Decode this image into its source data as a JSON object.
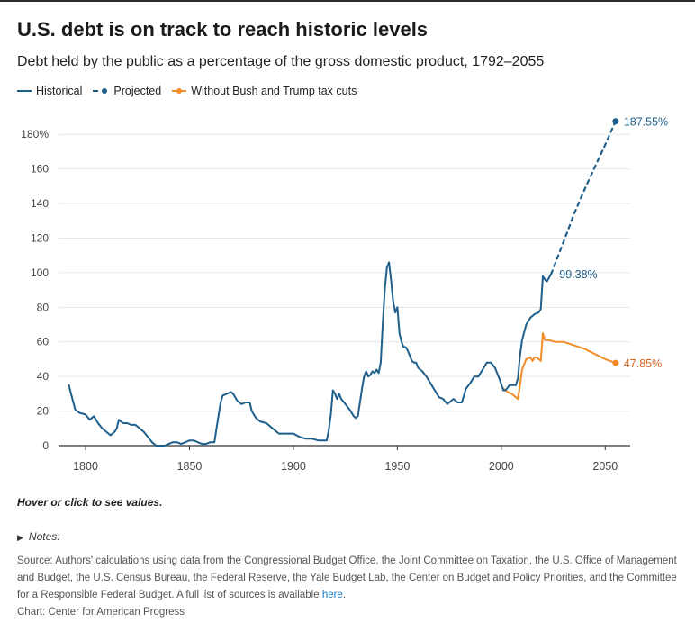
{
  "title": "U.S. debt is on track to reach historic levels",
  "subtitle": "Debt held by the public as a percentage of the gross domestic product, 1792–2055",
  "legend": {
    "historical": "Historical",
    "projected": "Projected",
    "without_tax_cuts": "Without Bush and Trump tax cuts"
  },
  "colors": {
    "historical": "#1f5f8b",
    "projected": "#1f5f8b",
    "without_tax_cuts": "#f28c28",
    "without_label": "#d9661f",
    "axis": "#333333",
    "grid": "#e6e6e6"
  },
  "hover_hint": "Hover or click to see values.",
  "notes_label": "Notes:",
  "source_text": "Source: Authors' calculations using data from the Congressional Budget Office, the Joint Committee on Taxation, the U.S. Office of Management and Budget, the U.S. Census Bureau, the Federal Reserve, the Yale Budget Lab, the Center on Budget and Policy Priorities, and the Committee for a Responsible Federal Budget. A full list of sources is available",
  "source_link": "here",
  "source_end": ".",
  "credit": "Chart: Center for American Progress",
  "chart_data": {
    "type": "line",
    "title": "U.S. debt is on track to reach historic levels",
    "subtitle": "Debt held by the public as a percentage of the gross domestic product, 1792–2055",
    "xlabel": "",
    "ylabel": "",
    "xlim": [
      1787,
      2062
    ],
    "ylim": [
      0,
      190
    ],
    "x_ticks": [
      1800,
      1850,
      1900,
      1950,
      2000,
      2050
    ],
    "y_ticks": [
      0,
      20,
      40,
      60,
      80,
      100,
      120,
      140,
      160,
      180
    ],
    "y_tick_labels": [
      "0",
      "20",
      "40",
      "60",
      "80",
      "100",
      "120",
      "140",
      "160",
      "180%"
    ],
    "grid": "horizontal",
    "legend_position": "top-left",
    "series": [
      {
        "name": "Historical",
        "style": "solid",
        "points": [
          [
            1792,
            35
          ],
          [
            1793,
            30
          ],
          [
            1795,
            21
          ],
          [
            1797,
            19
          ],
          [
            1800,
            18
          ],
          [
            1802,
            15
          ],
          [
            1804,
            17
          ],
          [
            1806,
            13
          ],
          [
            1808,
            10
          ],
          [
            1810,
            8
          ],
          [
            1812,
            6
          ],
          [
            1814,
            8
          ],
          [
            1815,
            10
          ],
          [
            1816,
            15
          ],
          [
            1818,
            13
          ],
          [
            1820,
            13
          ],
          [
            1822,
            12
          ],
          [
            1824,
            12
          ],
          [
            1826,
            10
          ],
          [
            1828,
            8
          ],
          [
            1830,
            5
          ],
          [
            1832,
            2
          ],
          [
            1834,
            0
          ],
          [
            1836,
            0
          ],
          [
            1838,
            0
          ],
          [
            1840,
            1
          ],
          [
            1842,
            2
          ],
          [
            1844,
            2
          ],
          [
            1846,
            1
          ],
          [
            1848,
            2
          ],
          [
            1850,
            3
          ],
          [
            1852,
            3
          ],
          [
            1854,
            2
          ],
          [
            1856,
            1
          ],
          [
            1858,
            1
          ],
          [
            1860,
            2
          ],
          [
            1862,
            2
          ],
          [
            1863,
            10
          ],
          [
            1865,
            25
          ],
          [
            1866,
            29
          ],
          [
            1868,
            30
          ],
          [
            1870,
            31
          ],
          [
            1871,
            30
          ],
          [
            1873,
            26
          ],
          [
            1875,
            24
          ],
          [
            1877,
            25
          ],
          [
            1879,
            25
          ],
          [
            1880,
            20
          ],
          [
            1882,
            16
          ],
          [
            1884,
            14
          ],
          [
            1887,
            13
          ],
          [
            1890,
            10
          ],
          [
            1893,
            7
          ],
          [
            1896,
            7
          ],
          [
            1898,
            7
          ],
          [
            1900,
            7
          ],
          [
            1903,
            5
          ],
          [
            1906,
            4
          ],
          [
            1909,
            4
          ],
          [
            1912,
            3
          ],
          [
            1915,
            3
          ],
          [
            1916,
            3
          ],
          [
            1917,
            9
          ],
          [
            1918,
            18
          ],
          [
            1919,
            32
          ],
          [
            1920,
            30
          ],
          [
            1921,
            27
          ],
          [
            1922,
            30
          ],
          [
            1923,
            27
          ],
          [
            1925,
            24
          ],
          [
            1927,
            21
          ],
          [
            1929,
            17
          ],
          [
            1930,
            16
          ],
          [
            1931,
            17
          ],
          [
            1932,
            25
          ],
          [
            1933,
            33
          ],
          [
            1934,
            40
          ],
          [
            1935,
            43
          ],
          [
            1936,
            40
          ],
          [
            1937,
            41
          ],
          [
            1938,
            43
          ],
          [
            1939,
            42
          ],
          [
            1940,
            44
          ],
          [
            1941,
            42
          ],
          [
            1942,
            48
          ],
          [
            1943,
            71
          ],
          [
            1944,
            91
          ],
          [
            1945,
            103
          ],
          [
            1946,
            106
          ],
          [
            1947,
            95
          ],
          [
            1948,
            83
          ],
          [
            1949,
            77
          ],
          [
            1950,
            80
          ],
          [
            1951,
            65
          ],
          [
            1952,
            60
          ],
          [
            1953,
            57
          ],
          [
            1954,
            57
          ],
          [
            1955,
            55
          ],
          [
            1956,
            52
          ],
          [
            1957,
            49
          ],
          [
            1958,
            48
          ],
          [
            1959,
            48
          ],
          [
            1960,
            45
          ],
          [
            1962,
            43
          ],
          [
            1964,
            40
          ],
          [
            1966,
            36
          ],
          [
            1968,
            32
          ],
          [
            1970,
            28
          ],
          [
            1972,
            27
          ],
          [
            1974,
            24
          ],
          [
            1975,
            25
          ],
          [
            1977,
            27
          ],
          [
            1979,
            25
          ],
          [
            1981,
            25
          ],
          [
            1983,
            33
          ],
          [
            1985,
            36
          ],
          [
            1987,
            40
          ],
          [
            1989,
            40
          ],
          [
            1991,
            44
          ],
          [
            1993,
            48
          ],
          [
            1995,
            48
          ],
          [
            1997,
            45
          ],
          [
            1999,
            39
          ],
          [
            2001,
            32
          ],
          [
            2002,
            32
          ],
          [
            2004,
            35
          ],
          [
            2006,
            35
          ],
          [
            2007,
            35
          ],
          [
            2008,
            39
          ],
          [
            2009,
            52
          ],
          [
            2010,
            61
          ],
          [
            2012,
            70
          ],
          [
            2014,
            74
          ],
          [
            2016,
            76
          ],
          [
            2018,
            77
          ],
          [
            2019,
            79
          ],
          [
            2020,
            98
          ],
          [
            2021,
            96
          ],
          [
            2022,
            95
          ],
          [
            2024,
            99.38
          ]
        ]
      },
      {
        "name": "Projected",
        "style": "dashed",
        "points": [
          [
            2024,
            99.38
          ],
          [
            2030,
            118
          ],
          [
            2035,
            134
          ],
          [
            2040,
            148
          ],
          [
            2045,
            161
          ],
          [
            2050,
            174
          ],
          [
            2055,
            187.55
          ]
        ]
      },
      {
        "name": "Without Bush and Trump tax cuts",
        "style": "solid",
        "points": [
          [
            2001,
            33
          ],
          [
            2003,
            31
          ],
          [
            2005,
            30
          ],
          [
            2007,
            28
          ],
          [
            2008,
            27
          ],
          [
            2009,
            35
          ],
          [
            2010,
            44
          ],
          [
            2012,
            50
          ],
          [
            2014,
            51
          ],
          [
            2015,
            49
          ],
          [
            2016,
            51
          ],
          [
            2017,
            51
          ],
          [
            2018,
            50
          ],
          [
            2019,
            49
          ],
          [
            2020,
            65
          ],
          [
            2021,
            61
          ],
          [
            2023,
            61
          ],
          [
            2026,
            60
          ],
          [
            2030,
            60
          ],
          [
            2035,
            58
          ],
          [
            2040,
            56
          ],
          [
            2045,
            53
          ],
          [
            2050,
            50
          ],
          [
            2055,
            47.85
          ]
        ]
      }
    ],
    "annotations": [
      {
        "series": "Historical",
        "x": 2024,
        "y": 99.38,
        "label": "99.38%"
      },
      {
        "series": "Projected",
        "x": 2055,
        "y": 187.55,
        "label": "187.55%"
      },
      {
        "series": "Without Bush and Trump tax cuts",
        "x": 2055,
        "y": 47.85,
        "label": "47.85%"
      }
    ]
  }
}
